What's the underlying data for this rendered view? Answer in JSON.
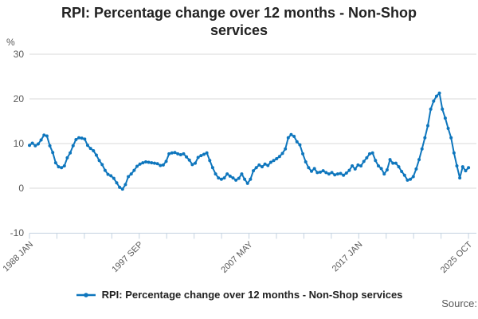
{
  "title": "RPI: Percentage change over 12 months - Non-Shop services",
  "legend": {
    "label": "RPI: Percentage change over 12 months - Non-Shop services"
  },
  "source": {
    "label": "Source:"
  },
  "colors": {
    "line": "#0E76BD",
    "grid": "#D9D9D9",
    "axis": "#C4D3E1",
    "tick_text": "#595959",
    "title_text": "#222222"
  },
  "chart_data": {
    "type": "line",
    "title": "RPI: Percentage change over 12 months - Non-Shop services",
    "ylabel": "%",
    "ylim": [
      -10,
      30
    ],
    "yticks": [
      30,
      20,
      10,
      0,
      -10
    ],
    "xtick_labels": [
      "1988 JAN",
      "1997 SEP",
      "2007 MAY",
      "2017 JAN",
      "2025 OCT"
    ],
    "num_x_ticks": 17,
    "grid": true,
    "legend_position": "bottom",
    "series": [
      {
        "name": "RPI: Percentage change over 12 months - Non-Shop services",
        "x_start_year": 1988.0,
        "x_step_years": 0.25,
        "x_end": "2025 OCT",
        "values": [
          9.6,
          10.1,
          9.5,
          9.9,
          10.8,
          11.9,
          11.7,
          9.5,
          8.0,
          5.7,
          4.8,
          4.6,
          5.0,
          6.8,
          7.9,
          9.5,
          10.9,
          11.3,
          11.2,
          11.0,
          9.6,
          8.9,
          8.4,
          7.4,
          6.2,
          5.3,
          4.0,
          3.1,
          2.8,
          2.2,
          1.2,
          0.2,
          -0.2,
          0.8,
          2.6,
          3.2,
          4.0,
          4.9,
          5.4,
          5.7,
          5.9,
          5.8,
          5.7,
          5.6,
          5.5,
          5.1,
          5.2,
          6.0,
          7.7,
          7.9,
          8.0,
          7.7,
          7.5,
          7.7,
          7.0,
          6.3,
          5.3,
          5.6,
          6.9,
          7.3,
          7.6,
          7.9,
          6.2,
          4.6,
          3.2,
          2.3,
          2.0,
          2.3,
          3.2,
          2.7,
          2.3,
          1.8,
          2.2,
          3.2,
          2.0,
          1.1,
          2.0,
          3.9,
          4.6,
          5.2,
          4.8,
          5.4,
          5.1,
          5.8,
          6.2,
          6.6,
          7.1,
          7.8,
          8.8,
          11.3,
          12.0,
          11.6,
          10.4,
          9.7,
          7.7,
          5.9,
          4.6,
          3.8,
          4.4,
          3.5,
          3.6,
          3.9,
          3.5,
          3.2,
          3.5,
          3.0,
          3.2,
          3.3,
          2.9,
          3.4,
          4.0,
          5.0,
          4.3,
          5.2,
          5.0,
          6.0,
          6.8,
          7.7,
          7.9,
          6.2,
          5.0,
          4.4,
          3.2,
          4.1,
          6.4,
          5.6,
          5.6,
          4.8,
          3.75,
          2.9,
          1.8,
          2.0,
          2.6,
          4.3,
          6.4,
          8.8,
          11.3,
          14.0,
          17.7,
          19.5,
          20.6,
          21.3,
          17.7,
          15.7,
          13.4,
          11.3,
          7.9,
          5.0,
          2.3,
          4.8,
          3.9,
          4.6
        ]
      }
    ]
  }
}
